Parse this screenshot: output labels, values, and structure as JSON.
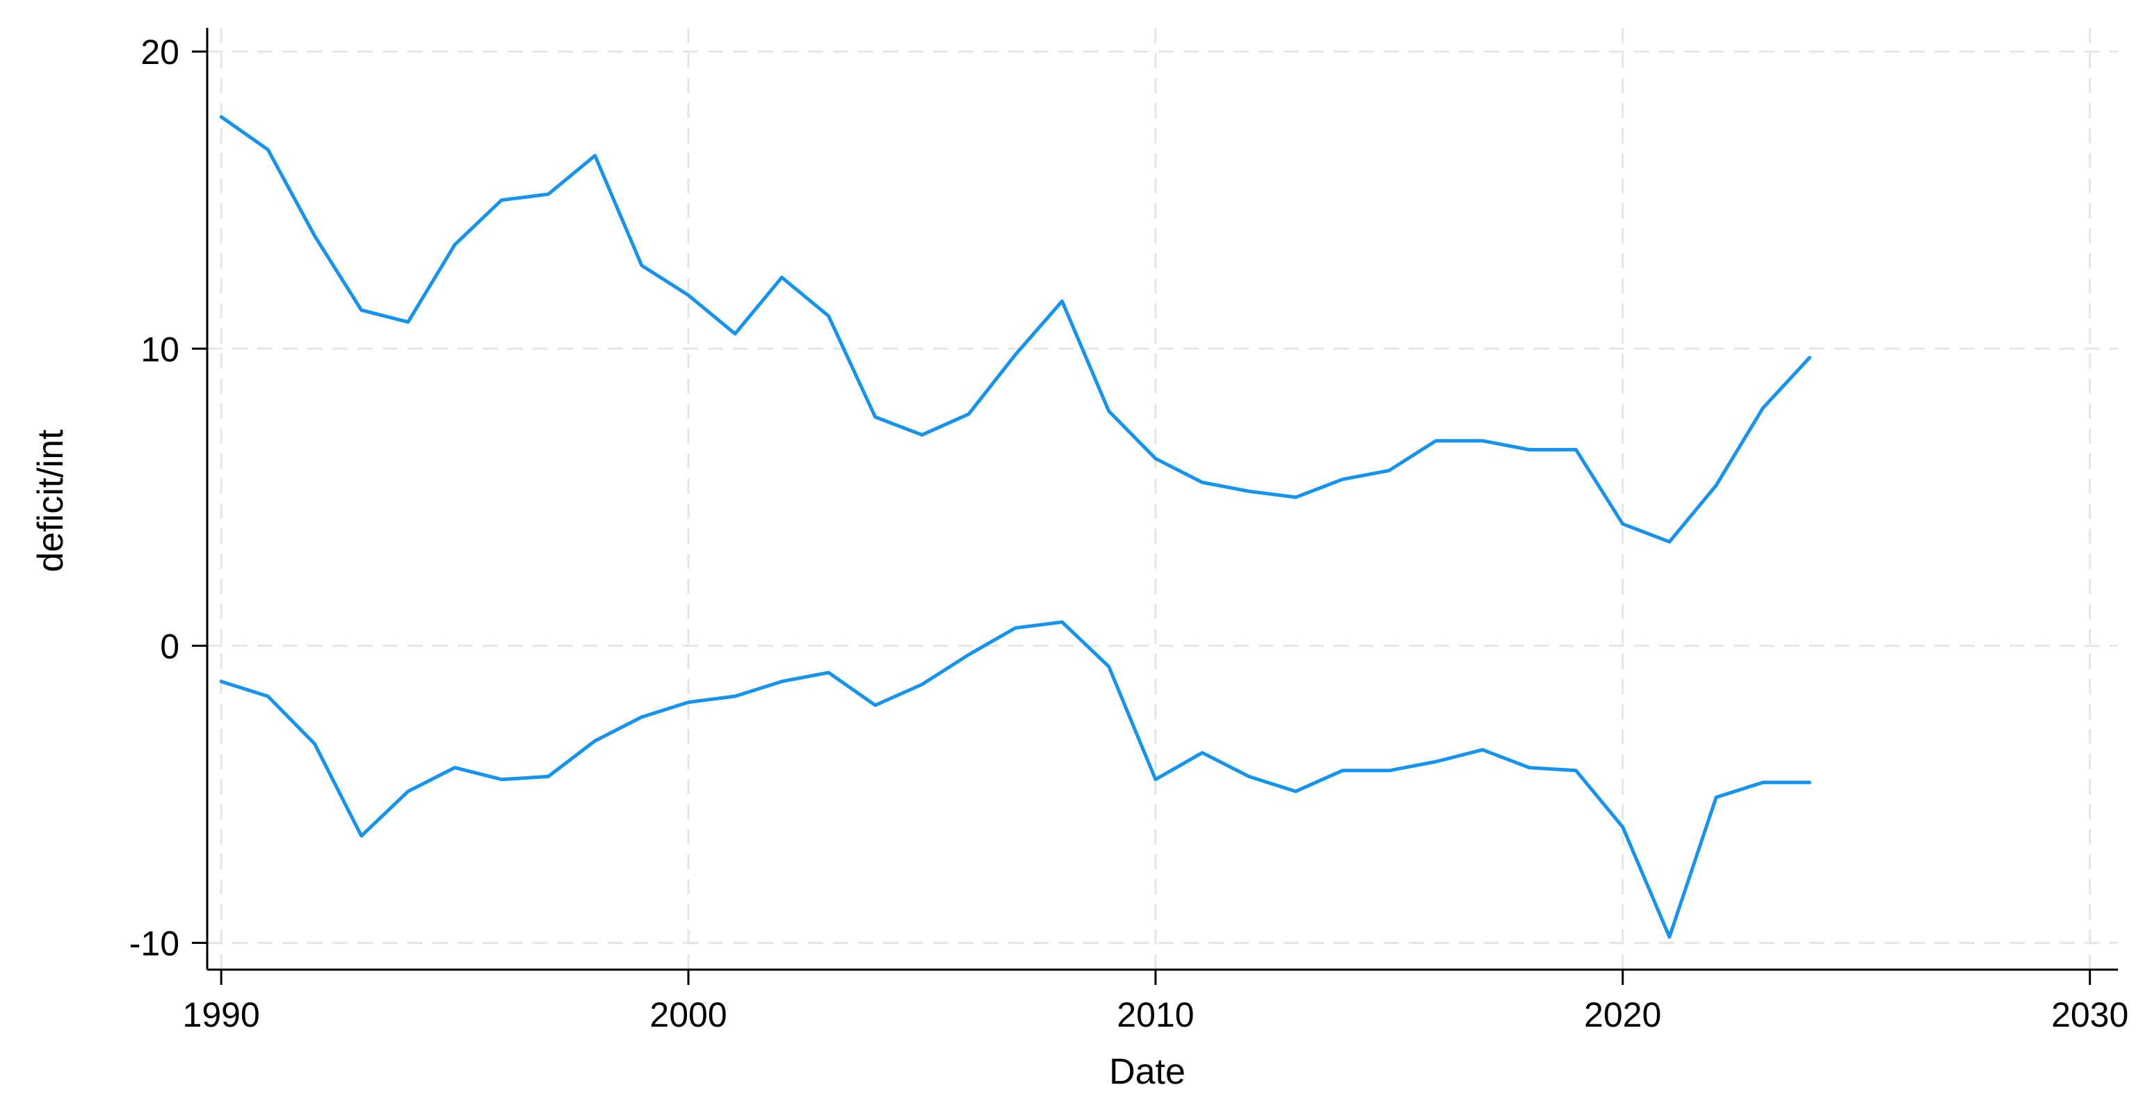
{
  "chart_data": {
    "type": "line",
    "title": "",
    "xlabel": "Date",
    "ylabel": "deficit/int",
    "xlim": [
      1990,
      2030
    ],
    "ylim": [
      -10,
      20
    ],
    "xlim_display": [
      1989.7,
      2030.6
    ],
    "ylim_display": [
      -10.9,
      20.8
    ],
    "xticks": [
      1990,
      2000,
      2010,
      2020,
      2030
    ],
    "yticks": [
      -10,
      0,
      10,
      20
    ],
    "xtick_labels": [
      "1990",
      "2000",
      "2010",
      "2020",
      "2030"
    ],
    "ytick_labels": [
      "-10",
      "0",
      "10",
      "20"
    ],
    "grid": true,
    "legend": "none",
    "line_color": "#1593f0",
    "grid_color": "#e6e6e6",
    "axis_color": "#000000",
    "x": [
      1990,
      1991,
      1992,
      1993,
      1994,
      1995,
      1996,
      1997,
      1998,
      1999,
      2000,
      2001,
      2002,
      2003,
      2004,
      2005,
      2006,
      2007,
      2008,
      2009,
      2010,
      2011,
      2012,
      2013,
      2014,
      2015,
      2016,
      2017,
      2018,
      2019,
      2020,
      2021,
      2022,
      2023,
      2024
    ],
    "series": [
      {
        "values": [
          17.8,
          16.7,
          13.8,
          11.3,
          10.9,
          13.5,
          15.0,
          15.2,
          16.5,
          12.8,
          11.8,
          10.5,
          12.4,
          11.1,
          7.7,
          7.1,
          7.8,
          9.8,
          11.6,
          7.9,
          6.3,
          5.5,
          5.2,
          5.0,
          5.6,
          5.9,
          6.9,
          6.9,
          6.6,
          6.6,
          4.1,
          3.5,
          5.4,
          8.0,
          9.7
        ]
      },
      {
        "values": [
          -1.2,
          -1.7,
          -3.3,
          -6.4,
          -4.9,
          -4.1,
          -4.5,
          -4.4,
          -3.2,
          -2.4,
          -1.9,
          -1.7,
          -1.2,
          -0.9,
          -2.0,
          -1.3,
          -0.3,
          0.6,
          0.8,
          -0.7,
          -4.5,
          -3.6,
          -4.4,
          -4.9,
          -4.2,
          -4.2,
          -3.9,
          -3.5,
          -4.1,
          -4.2,
          -6.1,
          -9.8,
          -5.1,
          -4.6,
          -4.6
        ]
      }
    ]
  }
}
